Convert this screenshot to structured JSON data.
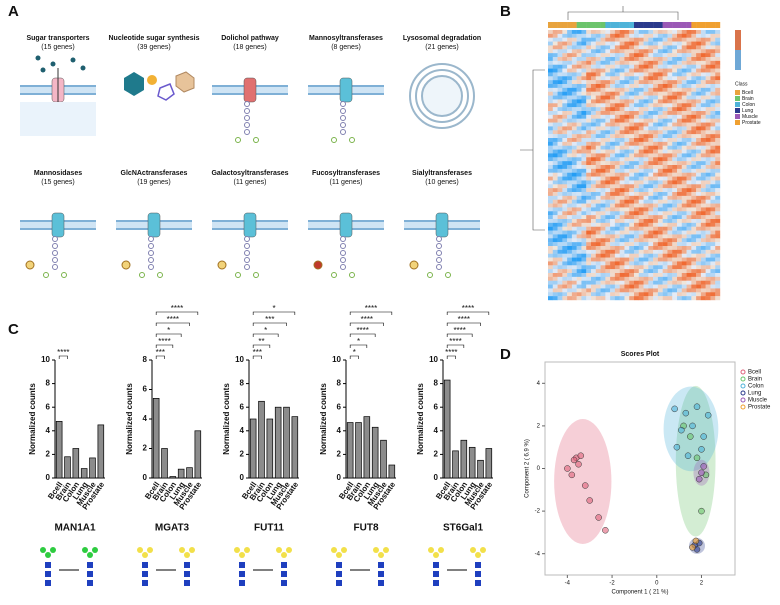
{
  "panels": [
    "A",
    "B",
    "C",
    "D"
  ],
  "pathways": [
    {
      "title": "Sugar transporters",
      "subtitle": "(15 genes)"
    },
    {
      "title": "Nucleotide sugar synthesis",
      "subtitle": "(39 genes)"
    },
    {
      "title": "Dolichol pathway",
      "subtitle": "(18 genes)"
    },
    {
      "title": "Mannosyltransferases",
      "subtitle": "(8 genes)"
    },
    {
      "title": "Lysosomal degradation",
      "subtitle": "(21 genes)"
    },
    {
      "title": "Mannosidases",
      "subtitle": "(15 genes)"
    },
    {
      "title": "GlcNActransferases",
      "subtitle": "(19 genes)"
    },
    {
      "title": "Galactosyltransferases",
      "subtitle": "(11 genes)"
    },
    {
      "title": "Fucosyltransferases",
      "subtitle": "(11 genes)"
    },
    {
      "title": "Sialyltransferases",
      "subtitle": "(10 genes)"
    }
  ],
  "heatmap": {
    "legend_title": "Class",
    "classes": [
      "Bcell",
      "Brain",
      "Colon",
      "Lung",
      "Muscle",
      "Prostate"
    ]
  },
  "chart_data": [
    {
      "type": "bar",
      "title": "MAN1A1",
      "y_label": "Normalized counts",
      "categories": [
        "Bcell",
        "Brain",
        "Colon",
        "Lung",
        "Muscle",
        "Prostate"
      ],
      "values": [
        4.8,
        1.8,
        2.5,
        0.8,
        1.7,
        4.5
      ],
      "color": "#8c8c8c",
      "ylim": [
        0,
        10
      ],
      "yticks": [
        0,
        2,
        4,
        6,
        8,
        10
      ],
      "significance": [
        "****"
      ]
    },
    {
      "type": "bar",
      "title": "MGAT3",
      "y_label": "Normalized counts",
      "categories": [
        "Bcell",
        "Brain",
        "Colon",
        "Lung",
        "Muscle",
        "Prostate"
      ],
      "values": [
        5.4,
        2.0,
        0.1,
        0.6,
        0.7,
        3.2
      ],
      "color": "#8c8c8c",
      "ylim": [
        0,
        8
      ],
      "yticks": [
        0,
        2,
        4,
        6,
        8
      ],
      "significance": [
        "***",
        "****",
        "*",
        "****",
        "****"
      ]
    },
    {
      "type": "bar",
      "title": "FUT11",
      "y_label": "Normalized counts",
      "categories": [
        "Bcell",
        "Brain",
        "Colon",
        "Lung",
        "Muscle",
        "Prostate"
      ],
      "values": [
        5.0,
        6.5,
        5.0,
        6.0,
        6.0,
        5.2
      ],
      "color": "#8c8c8c",
      "ylim": [
        0,
        10
      ],
      "yticks": [
        0,
        2,
        4,
        6,
        8,
        10
      ],
      "significance": [
        "***",
        "**",
        "*",
        "***",
        "*"
      ]
    },
    {
      "type": "bar",
      "title": "FUT8",
      "y_label": "Normalized counts",
      "categories": [
        "Bcell",
        "Brain",
        "Colon",
        "Lung",
        "Muscle",
        "Prostate"
      ],
      "values": [
        4.7,
        4.7,
        5.2,
        4.3,
        3.2,
        1.1
      ],
      "color": "#8c8c8c",
      "ylim": [
        0,
        10
      ],
      "yticks": [
        0,
        2,
        4,
        6,
        8,
        10
      ],
      "significance": [
        "*",
        "*",
        "****",
        "****",
        "****"
      ]
    },
    {
      "type": "bar",
      "title": "ST6Gal1",
      "y_label": "Normalized counts",
      "categories": [
        "Bcell",
        "Brain",
        "Colon",
        "Lung",
        "Muscle",
        "Prostate"
      ],
      "values": [
        8.3,
        2.3,
        3.2,
        2.6,
        1.5,
        2.5
      ],
      "color": "#8c8c8c",
      "ylim": [
        0,
        10
      ],
      "yticks": [
        0,
        2,
        4,
        6,
        8,
        10
      ],
      "significance": [
        "****",
        "****",
        "****",
        "****",
        "****"
      ]
    },
    {
      "type": "scatter",
      "title": "Scores Plot",
      "x_label": "Component 1 ( 21 %)",
      "y_label": "Component 2 ( 6.9 %)",
      "xlim": [
        -5,
        3.5
      ],
      "ylim": [
        -5,
        5
      ],
      "xticks": [
        -4,
        -2,
        0,
        2
      ],
      "yticks": [
        -4,
        -2,
        0,
        2,
        4
      ],
      "series": [
        {
          "name": "Bcell",
          "color": "#e0607a",
          "x": [
            -3.6,
            -3.5,
            -3.8,
            -3.2,
            -3.0,
            -2.6,
            -3.4,
            -4.0,
            -2.3,
            -3.7
          ],
          "y": [
            0.5,
            0.2,
            -0.3,
            -0.8,
            -1.5,
            -2.3,
            0.6,
            0.0,
            -2.9,
            0.4
          ]
        },
        {
          "name": "Brain",
          "color": "#6cc46c",
          "x": [
            2.0,
            1.8,
            1.5,
            2.2,
            1.2
          ],
          "y": [
            -2.0,
            0.5,
            1.5,
            -0.3,
            2.0
          ]
        },
        {
          "name": "Colon",
          "color": "#4fb3d9",
          "x": [
            0.8,
            1.3,
            1.8,
            2.3,
            1.1,
            1.6,
            2.1,
            0.9,
            1.4,
            2.0
          ],
          "y": [
            2.8,
            2.6,
            2.9,
            2.5,
            1.8,
            2.0,
            1.5,
            1.0,
            0.6,
            0.9
          ]
        },
        {
          "name": "Lung",
          "color": "#2b3a8c",
          "x": [
            1.7,
            1.8,
            1.9
          ],
          "y": [
            -3.6,
            -3.8,
            -3.5
          ]
        },
        {
          "name": "Muscle",
          "color": "#9b59b6",
          "x": [
            2.0,
            2.1,
            1.9
          ],
          "y": [
            -0.2,
            0.1,
            -0.5
          ]
        },
        {
          "name": "Prostate",
          "color": "#f0a030",
          "x": [
            1.6,
            1.75
          ],
          "y": [
            -3.7,
            -3.4
          ]
        }
      ]
    }
  ]
}
